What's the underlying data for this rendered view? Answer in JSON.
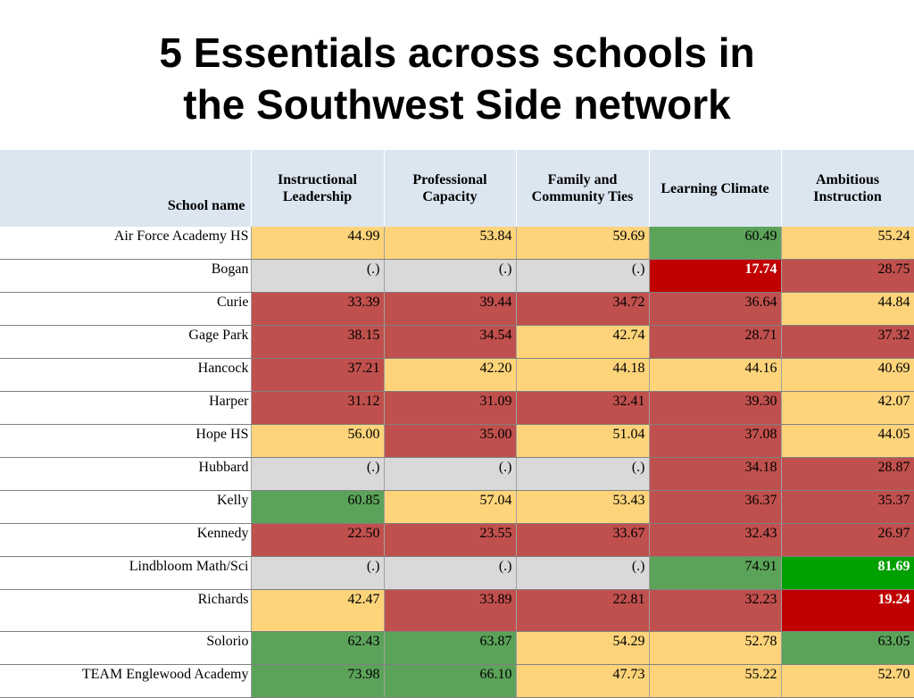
{
  "title": {
    "line1": "5 Essentials across schools in",
    "line2": "the Southwest Side network"
  },
  "table": {
    "headers": [
      "School name",
      "Instructional Leadership",
      "Professional Capacity",
      "Family and Community Ties",
      "Learning Climate",
      "Ambitious Instruction"
    ],
    "rows": [
      {
        "name": "Air Force Academy HS",
        "cells": [
          {
            "v": "44.99",
            "c": "y"
          },
          {
            "v": "53.84",
            "c": "y"
          },
          {
            "v": "59.69",
            "c": "y"
          },
          {
            "v": "60.49",
            "c": "g"
          },
          {
            "v": "55.24",
            "c": "y"
          }
        ]
      },
      {
        "name": "Bogan",
        "cells": [
          {
            "v": "(.)",
            "c": "n"
          },
          {
            "v": "(.)",
            "c": "n"
          },
          {
            "v": "(.)",
            "c": "n"
          },
          {
            "v": "17.74",
            "c": "dr"
          },
          {
            "v": "28.75",
            "c": "r"
          }
        ]
      },
      {
        "name": "Curie",
        "cells": [
          {
            "v": "33.39",
            "c": "r"
          },
          {
            "v": "39.44",
            "c": "r"
          },
          {
            "v": "34.72",
            "c": "r"
          },
          {
            "v": "36.64",
            "c": "r"
          },
          {
            "v": "44.84",
            "c": "y"
          }
        ]
      },
      {
        "name": "Gage Park",
        "cells": [
          {
            "v": "38.15",
            "c": "r"
          },
          {
            "v": "34.54",
            "c": "r"
          },
          {
            "v": "42.74",
            "c": "y"
          },
          {
            "v": "28.71",
            "c": "r"
          },
          {
            "v": "37.32",
            "c": "r"
          }
        ]
      },
      {
        "name": "Hancock",
        "cells": [
          {
            "v": "37.21",
            "c": "r"
          },
          {
            "v": "42.20",
            "c": "y"
          },
          {
            "v": "44.18",
            "c": "y"
          },
          {
            "v": "44.16",
            "c": "y"
          },
          {
            "v": "40.69",
            "c": "y"
          }
        ]
      },
      {
        "name": "Harper",
        "cells": [
          {
            "v": "31.12",
            "c": "r"
          },
          {
            "v": "31.09",
            "c": "r"
          },
          {
            "v": "32.41",
            "c": "r"
          },
          {
            "v": "39.30",
            "c": "r"
          },
          {
            "v": "42.07",
            "c": "y"
          }
        ]
      },
      {
        "name": "Hope HS",
        "cells": [
          {
            "v": "56.00",
            "c": "y"
          },
          {
            "v": "35.00",
            "c": "r"
          },
          {
            "v": "51.04",
            "c": "y"
          },
          {
            "v": "37.08",
            "c": "r"
          },
          {
            "v": "44.05",
            "c": "y"
          }
        ]
      },
      {
        "name": "Hubbard",
        "cells": [
          {
            "v": "(.)",
            "c": "n"
          },
          {
            "v": "(.)",
            "c": "n"
          },
          {
            "v": "(.)",
            "c": "n"
          },
          {
            "v": "34.18",
            "c": "r"
          },
          {
            "v": "28.87",
            "c": "r"
          }
        ]
      },
      {
        "name": "Kelly",
        "cells": [
          {
            "v": "60.85",
            "c": "g"
          },
          {
            "v": "57.04",
            "c": "y"
          },
          {
            "v": "53.43",
            "c": "y"
          },
          {
            "v": "36.37",
            "c": "r"
          },
          {
            "v": "35.37",
            "c": "r"
          }
        ]
      },
      {
        "name": "Kennedy",
        "cells": [
          {
            "v": "22.50",
            "c": "r"
          },
          {
            "v": "23.55",
            "c": "r"
          },
          {
            "v": "33.67",
            "c": "r"
          },
          {
            "v": "32.43",
            "c": "r"
          },
          {
            "v": "26.97",
            "c": "r"
          }
        ]
      },
      {
        "name": "Lindbloom Math/Sci",
        "cells": [
          {
            "v": "(.)",
            "c": "n"
          },
          {
            "v": "(.)",
            "c": "n"
          },
          {
            "v": "(.)",
            "c": "n"
          },
          {
            "v": "74.91",
            "c": "g"
          },
          {
            "v": "81.69",
            "c": "dg"
          }
        ]
      },
      {
        "name": "Richards",
        "tall": true,
        "cells": [
          {
            "v": "42.47",
            "c": "y"
          },
          {
            "v": "33.89",
            "c": "r"
          },
          {
            "v": "22.81",
            "c": "r"
          },
          {
            "v": "32.23",
            "c": "r"
          },
          {
            "v": "19.24",
            "c": "dr"
          }
        ]
      },
      {
        "name": "Solorio",
        "cells": [
          {
            "v": "62.43",
            "c": "g"
          },
          {
            "v": "63.87",
            "c": "g"
          },
          {
            "v": "54.29",
            "c": "y"
          },
          {
            "v": "52.78",
            "c": "y"
          },
          {
            "v": "63.05",
            "c": "g"
          }
        ]
      },
      {
        "name": "TEAM Englewood Academy",
        "cells": [
          {
            "v": "73.98",
            "c": "g"
          },
          {
            "v": "66.10",
            "c": "g"
          },
          {
            "v": "47.73",
            "c": "y"
          },
          {
            "v": "55.22",
            "c": "y"
          },
          {
            "v": "52.70",
            "c": "y"
          }
        ]
      }
    ]
  },
  "colors": {
    "header_bg": "#dce6f1",
    "yellow": "#fed47b",
    "red": "#c0504d",
    "green": "#5ca35a",
    "gray": "#d9d9d9",
    "dark_red": "#c00000",
    "bright_green": "#00a000"
  }
}
